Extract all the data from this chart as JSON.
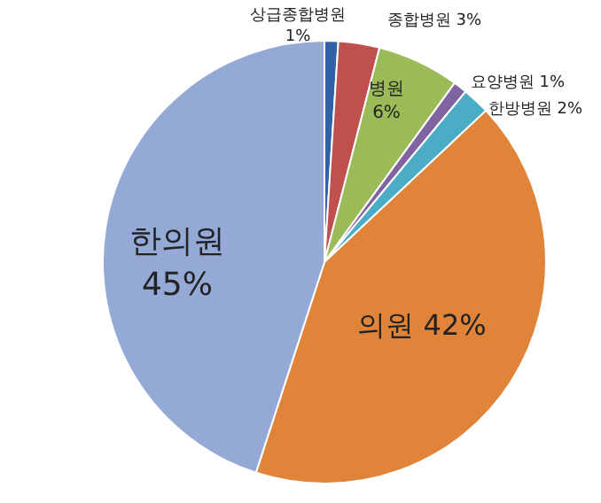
{
  "chart_data": {
    "type": "pie",
    "categories": [
      "상급종합병원",
      "종합병원",
      "병원",
      "요양병원",
      "한방병원",
      "의원",
      "한의원"
    ],
    "values": [
      1,
      3,
      6,
      1,
      2,
      42,
      45
    ],
    "value_labels": [
      "1%",
      "3%",
      "6%",
      "1%",
      "2%",
      "42%",
      "45%"
    ],
    "colors": [
      "#2f63a6",
      "#c0504d",
      "#9bbb59",
      "#8064a2",
      "#4bacc6",
      "#e0843a",
      "#94a9d6"
    ]
  }
}
